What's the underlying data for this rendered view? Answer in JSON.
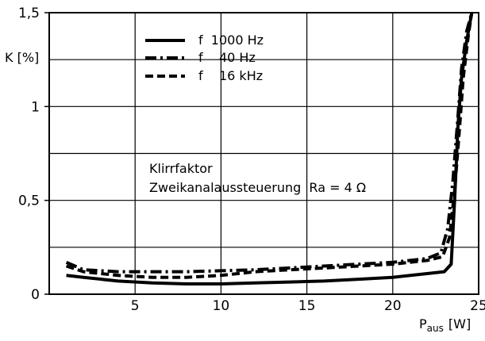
{
  "chart_data": {
    "type": "line",
    "title": "",
    "xlabel_main": "P",
    "xlabel_sub": "aus",
    "xlabel_unit": "[W]",
    "ylabel": "K [%]",
    "xlim": [
      0,
      25
    ],
    "ylim": [
      0,
      1.5
    ],
    "grid": true,
    "xticks": [
      5,
      10,
      15,
      20,
      25
    ],
    "xtick_labels": [
      "5",
      "10",
      "15",
      "20",
      "25"
    ],
    "yticks": [
      0,
      0.5,
      1,
      1.5
    ],
    "ytick_labels": [
      "0",
      "0,5",
      "1",
      "1,5"
    ],
    "legend_position": "top-left",
    "annotation": {
      "line1": "Klirrfaktor",
      "line2": "Zweikanalaussteuerung  Ra = 4 Ω"
    },
    "series": [
      {
        "name": "f  1000 Hz",
        "style": "solid",
        "x": [
          1,
          2,
          4,
          6,
          8,
          10,
          12,
          14,
          16,
          18,
          20,
          22,
          23,
          23.4,
          23.6,
          23.8,
          24.0,
          24.3,
          24.6
        ],
        "y": [
          0.1,
          0.09,
          0.07,
          0.06,
          0.055,
          0.055,
          0.06,
          0.065,
          0.07,
          0.08,
          0.09,
          0.11,
          0.12,
          0.16,
          0.5,
          0.9,
          1.15,
          1.35,
          1.5
        ]
      },
      {
        "name": "f    40 Hz",
        "style": "dashdot",
        "x": [
          1,
          2,
          4,
          6,
          8,
          10,
          12,
          14,
          16,
          18,
          20,
          22,
          22.8,
          23.2,
          23.5,
          23.8,
          24.0,
          24.3,
          24.6
        ],
        "y": [
          0.17,
          0.13,
          0.12,
          0.12,
          0.12,
          0.125,
          0.13,
          0.14,
          0.15,
          0.16,
          0.17,
          0.19,
          0.22,
          0.35,
          0.6,
          0.95,
          1.2,
          1.4,
          1.5
        ]
      },
      {
        "name": "f    16 kHz",
        "style": "dashed",
        "x": [
          1,
          2,
          4,
          6,
          8,
          10,
          12,
          14,
          16,
          18,
          20,
          22,
          22.9,
          23.3,
          23.6,
          23.9,
          24.1,
          24.4,
          24.6
        ],
        "y": [
          0.15,
          0.12,
          0.1,
          0.09,
          0.09,
          0.1,
          0.12,
          0.13,
          0.14,
          0.15,
          0.16,
          0.18,
          0.2,
          0.3,
          0.55,
          0.9,
          1.15,
          1.38,
          1.5
        ]
      }
    ]
  }
}
